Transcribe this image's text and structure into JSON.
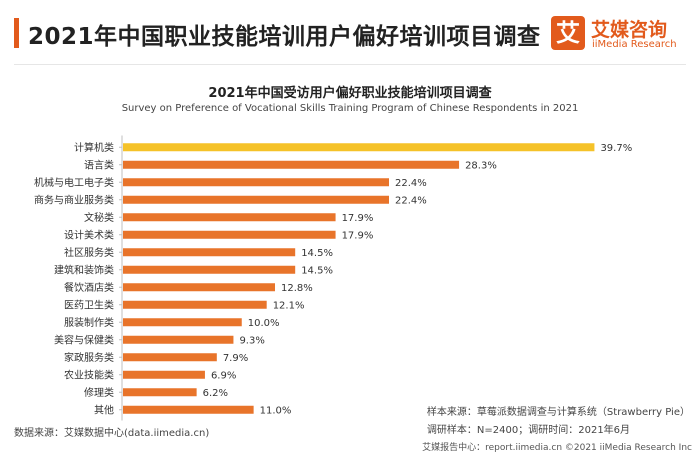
{
  "header": {
    "title": "2021年中国职业技能培训用户偏好培训项目调查",
    "logo_glyph": "艾",
    "logo_name": "艾媒咨询",
    "logo_sub": "iiMedia Research",
    "accent_color": "#e25a1c"
  },
  "chart_data": {
    "type": "bar",
    "orientation": "horizontal",
    "title": "2021年中国受访用户偏好职业技能培训项目调查",
    "subtitle": "Survey on Preference of Vocational Skills Training Program of Chinese Respondents in 2021",
    "categories": [
      "计算机类",
      "语言类",
      "机械与电工电子类",
      "商务与商业服务类",
      "文秘类",
      "设计美术类",
      "社区服务类",
      "建筑和装饰类",
      "餐饮酒店类",
      "医药卫生类",
      "服装制作类",
      "美容与保健类",
      "家政服务类",
      "农业技能类",
      "修理类",
      "其他"
    ],
    "values": [
      39.7,
      28.3,
      22.4,
      22.4,
      17.9,
      17.9,
      14.5,
      14.5,
      12.8,
      12.1,
      10.0,
      9.3,
      7.9,
      6.9,
      6.2,
      11.0
    ],
    "value_labels": [
      "39.7%",
      "28.3%",
      "22.4%",
      "22.4%",
      "17.9%",
      "17.9%",
      "14.5%",
      "14.5%",
      "12.8%",
      "12.1%",
      "10.0%",
      "9.3%",
      "7.9%",
      "6.9%",
      "6.2%",
      "11.0%"
    ],
    "unit": "%",
    "xlim": [
      0,
      40
    ],
    "highlight_index": 0,
    "highlight_color": "#f5c229",
    "bar_color": "#e8742a",
    "grid": false
  },
  "footer": {
    "source": "数据来源：艾媒数据中心(data.iimedia.cn)",
    "sample_source": "样本来源：草莓派数据调查与计算系统（Strawberry Pie）",
    "sample_info": "调研样本：N=2400；调研时间：2021年6月",
    "copyright": "艾媒报告中心：report.iimedia.cn   ©2021  iiMedia Research  Inc"
  }
}
